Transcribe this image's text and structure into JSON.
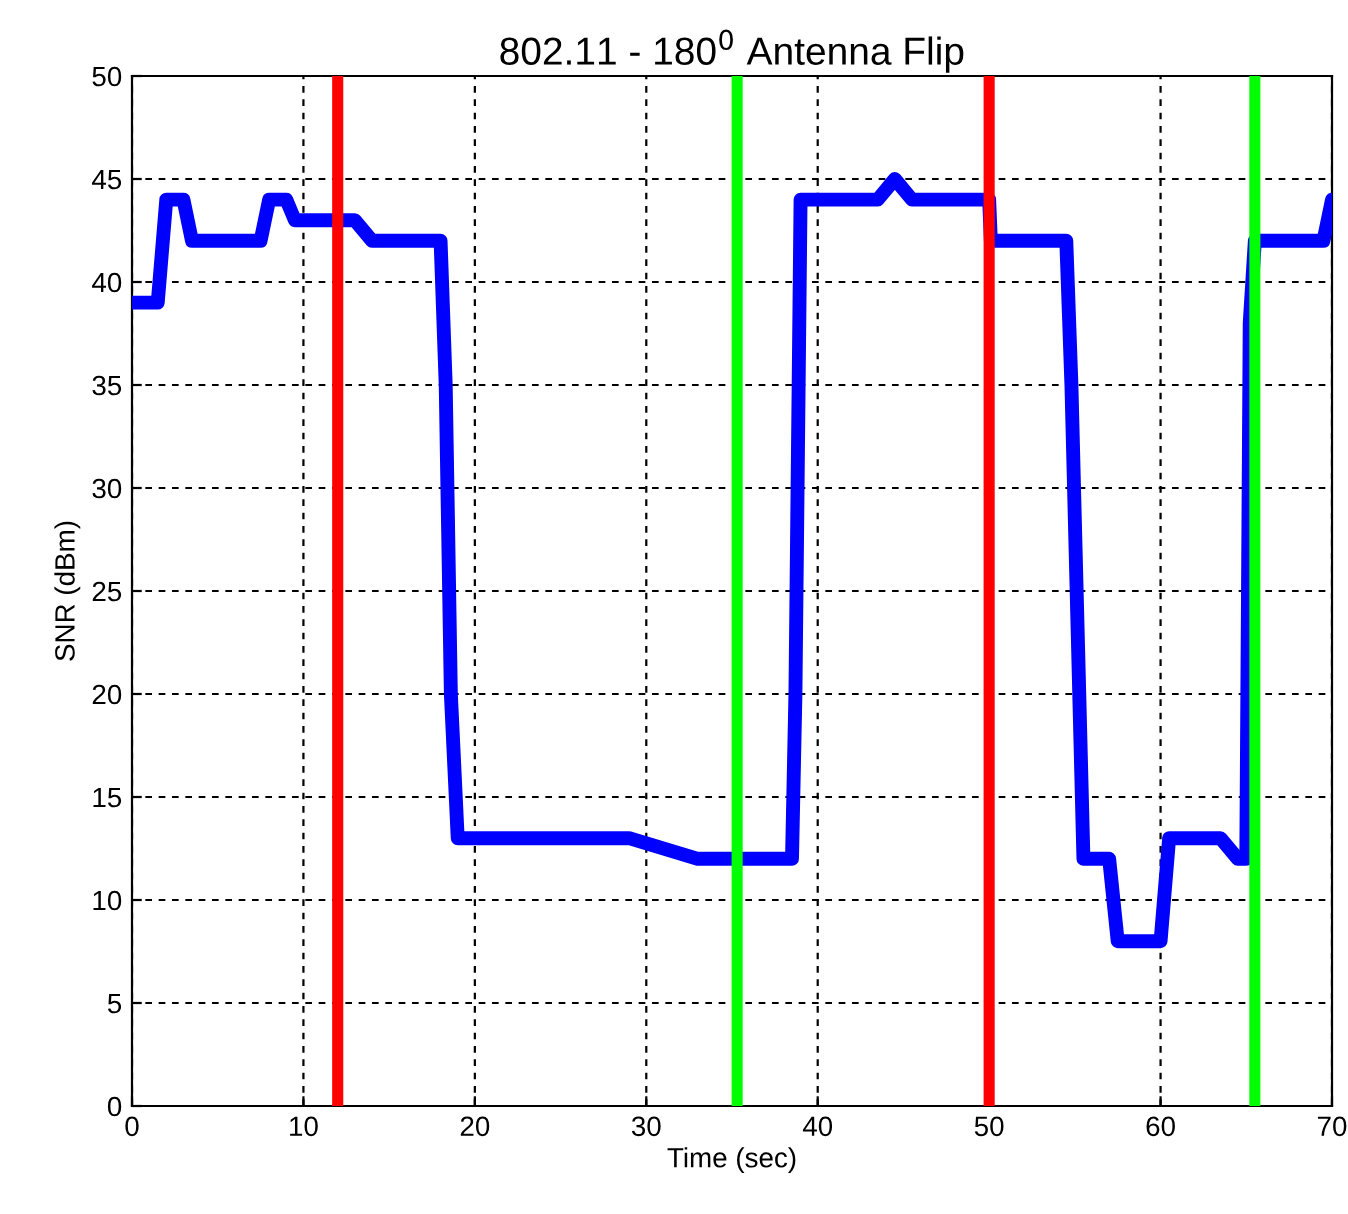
{
  "chart_data": {
    "type": "line",
    "title": "802.11 - 180$^{0}$ Antenna Flip",
    "xlabel": "Time (sec)",
    "ylabel": "SNR (dBm)",
    "xlim": [
      0,
      70
    ],
    "ylim": [
      0,
      50
    ],
    "xticks": [
      0,
      10,
      20,
      30,
      40,
      50,
      60,
      70
    ],
    "yticks": [
      0,
      5,
      10,
      15,
      20,
      25,
      30,
      35,
      40,
      45,
      50
    ],
    "grid": true,
    "marker": "none",
    "line_style": "solid",
    "series": [
      {
        "color": "#0000ff",
        "x": [
          0,
          1.5,
          2,
          3,
          3.5,
          7.5,
          8,
          9,
          9.5,
          13,
          14,
          18,
          18.3,
          18.6,
          19,
          29,
          33,
          38.5,
          38.7,
          39,
          43.5,
          44.5,
          45.5,
          50,
          50.1,
          54.5,
          54.8,
          55.5,
          57,
          57.5,
          60,
          60.5,
          63.5,
          64.5,
          65,
          65.2,
          65.5,
          69.5,
          70
        ],
        "values": [
          39,
          39,
          44,
          44,
          42,
          42,
          44,
          44,
          43,
          43,
          42,
          42,
          35,
          20,
          13,
          13,
          12,
          12,
          20,
          44,
          44,
          45,
          44,
          44,
          42,
          42,
          35,
          12,
          12,
          8,
          8,
          13,
          13,
          12,
          12,
          38,
          42,
          42,
          44
        ]
      }
    ],
    "ref_lines": [
      {
        "axis": "x",
        "value": 12,
        "color": "#ff0000"
      },
      {
        "axis": "x",
        "value": 35.3,
        "color": "#00ff00"
      },
      {
        "axis": "x",
        "value": 50,
        "color": "#ff0000"
      },
      {
        "axis": "x",
        "value": 65.5,
        "color": "#00ff00"
      }
    ]
  }
}
